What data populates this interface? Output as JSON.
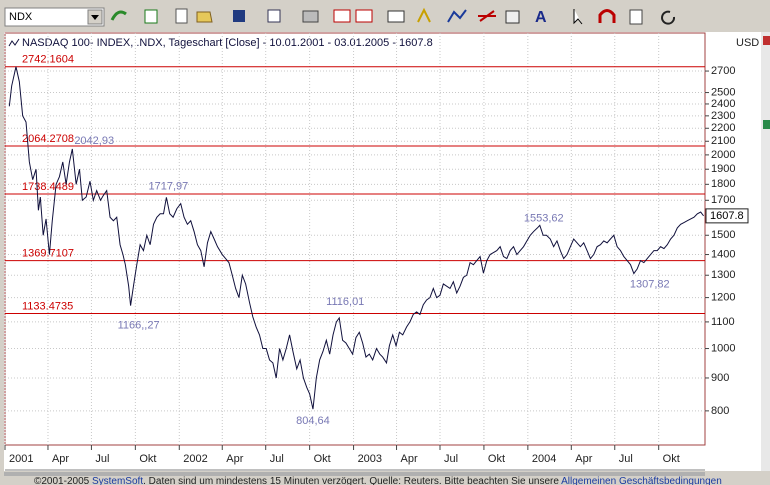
{
  "toolbar": {
    "symbol": "NDX",
    "font_icon": "A"
  },
  "chart_data": {
    "type": "line",
    "title": "NASDAQ 100- INDEX, .NDX, Tageschart [Close] - 10.01.2001 - 03.01.2005 - 1607.8",
    "y_label": "USD",
    "log_scale": true,
    "grid": true,
    "xlim": [
      "2001-01-01",
      "2005-01-06"
    ],
    "ylim": [
      708,
      3094
    ],
    "yticks": [
      800,
      900,
      1000,
      1100,
      1200,
      1300,
      1400,
      1500,
      1700,
      1800,
      1900,
      2000,
      2100,
      2200,
      2300,
      2400,
      2500,
      2700
    ],
    "xticks": [
      {
        "value": "2001-01-01",
        "label": "2001"
      },
      {
        "value": "2001-04-01",
        "label": "Apr"
      },
      {
        "value": "2001-07-01",
        "label": "Jul"
      },
      {
        "value": "2001-10-01",
        "label": "Okt"
      },
      {
        "value": "2002-01-01",
        "label": "2002"
      },
      {
        "value": "2002-04-01",
        "label": "Apr"
      },
      {
        "value": "2002-07-01",
        "label": "Jul"
      },
      {
        "value": "2002-10-01",
        "label": "Okt"
      },
      {
        "value": "2003-01-01",
        "label": "2003"
      },
      {
        "value": "2003-04-01",
        "label": "Apr"
      },
      {
        "value": "2003-07-01",
        "label": "Jul"
      },
      {
        "value": "2003-10-01",
        "label": "Okt"
      },
      {
        "value": "2004-01-01",
        "label": "2004"
      },
      {
        "value": "2004-04-01",
        "label": "Apr"
      },
      {
        "value": "2004-07-01",
        "label": "Jul"
      },
      {
        "value": "2004-10-01",
        "label": "Okt"
      }
    ],
    "levels": [
      2742.1604,
      2064.2708,
      1738.4489,
      1369.7107,
      1133.4735
    ],
    "level_color": "#cc0000",
    "annotation_color": "#7878b4",
    "annotations": [
      {
        "text": "2042,93",
        "x": "2001-05-22",
        "value": 2042.93
      },
      {
        "text": "1717,97",
        "x": "2001-12-05",
        "value": 1717.97
      },
      {
        "text": "1166,,27",
        "x": "2001-09-21",
        "value": 1166.27
      },
      {
        "text": "804,64",
        "x": "2002-10-08",
        "value": 804.64
      },
      {
        "text": "1116,01",
        "x": "2002-12-02",
        "value": 1116.01
      },
      {
        "text": "1553,62",
        "x": "2004-01-26",
        "value": 1553.62
      },
      {
        "text": "1307,82",
        "x": "2004-08-10",
        "value": 1307.82
      }
    ],
    "x": [
      "2001-01-10",
      "2001-01-15",
      "2001-01-24",
      "2001-01-31",
      "2001-02-07",
      "2001-02-14",
      "2001-02-21",
      "2001-02-28",
      "2001-03-07",
      "2001-03-12",
      "2001-03-16",
      "2001-03-22",
      "2001-03-28",
      "2001-04-04",
      "2001-04-10",
      "2001-04-18",
      "2001-04-25",
      "2001-05-02",
      "2001-05-09",
      "2001-05-16",
      "2001-05-22",
      "2001-05-30",
      "2001-06-06",
      "2001-06-12",
      "2001-06-20",
      "2001-06-28",
      "2001-07-05",
      "2001-07-12",
      "2001-07-20",
      "2001-07-26",
      "2001-08-02",
      "2001-08-09",
      "2001-08-16",
      "2001-08-23",
      "2001-08-30",
      "2001-09-05",
      "2001-09-10",
      "2001-09-17",
      "2001-09-21",
      "2001-09-27",
      "2001-10-04",
      "2001-10-11",
      "2001-10-18",
      "2001-10-25",
      "2001-11-01",
      "2001-11-08",
      "2001-11-15",
      "2001-11-22",
      "2001-11-29",
      "2001-12-05",
      "2001-12-12",
      "2001-12-19",
      "2001-12-27",
      "2002-01-04",
      "2002-01-11",
      "2002-01-18",
      "2002-01-25",
      "2002-02-01",
      "2002-02-08",
      "2002-02-15",
      "2002-02-22",
      "2002-03-01",
      "2002-03-08",
      "2002-03-15",
      "2002-03-22",
      "2002-04-01",
      "2002-04-08",
      "2002-04-15",
      "2002-04-22",
      "2002-04-29",
      "2002-05-06",
      "2002-05-13",
      "2002-05-20",
      "2002-05-28",
      "2002-06-04",
      "2002-06-11",
      "2002-06-18",
      "2002-06-25",
      "2002-07-02",
      "2002-07-09",
      "2002-07-16",
      "2002-07-23",
      "2002-07-30",
      "2002-08-06",
      "2002-08-13",
      "2002-08-20",
      "2002-08-27",
      "2002-09-04",
      "2002-09-11",
      "2002-09-18",
      "2002-09-25",
      "2002-10-01",
      "2002-10-08",
      "2002-10-15",
      "2002-10-22",
      "2002-10-29",
      "2002-11-05",
      "2002-11-12",
      "2002-11-19",
      "2002-11-26",
      "2002-12-02",
      "2002-12-09",
      "2002-12-16",
      "2002-12-23",
      "2002-12-30",
      "2003-01-06",
      "2003-01-13",
      "2003-01-20",
      "2003-01-27",
      "2003-02-03",
      "2003-02-10",
      "2003-02-18",
      "2003-02-25",
      "2003-03-03",
      "2003-03-11",
      "2003-03-17",
      "2003-03-24",
      "2003-03-31",
      "2003-04-07",
      "2003-04-14",
      "2003-04-22",
      "2003-04-29",
      "2003-05-06",
      "2003-05-13",
      "2003-05-20",
      "2003-05-27",
      "2003-06-03",
      "2003-06-10",
      "2003-06-17",
      "2003-06-24",
      "2003-07-01",
      "2003-07-08",
      "2003-07-15",
      "2003-07-22",
      "2003-07-29",
      "2003-08-05",
      "2003-08-12",
      "2003-08-19",
      "2003-08-26",
      "2003-09-02",
      "2003-09-09",
      "2003-09-16",
      "2003-09-23",
      "2003-09-30",
      "2003-10-07",
      "2003-10-14",
      "2003-10-21",
      "2003-10-28",
      "2003-11-04",
      "2003-11-11",
      "2003-11-18",
      "2003-11-25",
      "2003-12-02",
      "2003-12-09",
      "2003-12-16",
      "2003-12-23",
      "2003-12-30",
      "2004-01-06",
      "2004-01-13",
      "2004-01-21",
      "2004-01-26",
      "2004-02-02",
      "2004-02-09",
      "2004-02-17",
      "2004-02-24",
      "2004-03-02",
      "2004-03-09",
      "2004-03-16",
      "2004-03-23",
      "2004-03-30",
      "2004-04-06",
      "2004-04-13",
      "2004-04-20",
      "2004-04-27",
      "2004-05-04",
      "2004-05-11",
      "2004-05-18",
      "2004-05-25",
      "2004-06-01",
      "2004-06-08",
      "2004-06-15",
      "2004-06-22",
      "2004-06-29",
      "2004-07-06",
      "2004-07-13",
      "2004-07-20",
      "2004-07-27",
      "2004-08-03",
      "2004-08-10",
      "2004-08-17",
      "2004-08-24",
      "2004-08-31",
      "2004-09-07",
      "2004-09-14",
      "2004-09-21",
      "2004-09-28",
      "2004-10-05",
      "2004-10-12",
      "2004-10-19",
      "2004-10-26",
      "2004-11-02",
      "2004-11-09",
      "2004-11-16",
      "2004-11-23",
      "2004-11-30",
      "2004-12-07",
      "2004-12-14",
      "2004-12-21",
      "2004-12-28",
      "2005-01-03"
    ],
    "series": [
      {
        "name": "NASDAQ 100- INDEX",
        "color": "#10103c",
        "values": [
          2380,
          2560,
          2742,
          2600,
          2300,
          2250,
          1950,
          1830,
          1900,
          1640,
          1720,
          1500,
          1590,
          1400,
          1580,
          1800,
          1850,
          1950,
          1800,
          1950,
          2043,
          1800,
          1900,
          1700,
          1720,
          1820,
          1700,
          1760,
          1700,
          1730,
          1760,
          1600,
          1580,
          1600,
          1450,
          1400,
          1350,
          1250,
          1166,
          1250,
          1350,
          1450,
          1420,
          1500,
          1450,
          1560,
          1600,
          1620,
          1620,
          1718,
          1620,
          1600,
          1650,
          1680,
          1600,
          1560,
          1580,
          1520,
          1450,
          1420,
          1340,
          1460,
          1520,
          1480,
          1440,
          1400,
          1380,
          1360,
          1300,
          1240,
          1200,
          1300,
          1260,
          1180,
          1120,
          1080,
          1050,
          1000,
          1000,
          960,
          950,
          900,
          1000,
          960,
          1000,
          1050,
          990,
          930,
          960,
          900,
          870,
          850,
          805,
          900,
          960,
          990,
          1030,
          980,
          1050,
          1100,
          1116,
          1030,
          1020,
          1000,
          980,
          1040,
          1060,
          1020,
          970,
          980,
          960,
          1000,
          980,
          970,
          950,
          1010,
          1050,
          1010,
          1060,
          1050,
          1080,
          1100,
          1130,
          1140,
          1130,
          1170,
          1190,
          1200,
          1240,
          1200,
          1210,
          1260,
          1250,
          1240,
          1270,
          1220,
          1250,
          1290,
          1300,
          1360,
          1350,
          1370,
          1390,
          1310,
          1370,
          1400,
          1410,
          1420,
          1440,
          1390,
          1380,
          1420,
          1440,
          1400,
          1420,
          1440,
          1470,
          1500,
          1520,
          1540,
          1554,
          1500,
          1500,
          1480,
          1440,
          1470,
          1420,
          1380,
          1400,
          1440,
          1480,
          1460,
          1440,
          1460,
          1420,
          1380,
          1400,
          1440,
          1450,
          1470,
          1460,
          1480,
          1500,
          1440,
          1420,
          1390,
          1370,
          1350,
          1308,
          1330,
          1370,
          1360,
          1380,
          1400,
          1420,
          1420,
          1440,
          1430,
          1450,
          1480,
          1500,
          1540,
          1560,
          1570,
          1580,
          1590,
          1600,
          1620,
          1630,
          1607.8
        ]
      }
    ]
  },
  "footer": {
    "copyright": "©2001-2005 ",
    "link1": "SystemSoft",
    "text": ". Daten sind um mindestens 15 Minuten verzögert. Quelle: Reuters. Bitte beachten Sie unsere ",
    "link2": "Allgemeinen Geschäftsbedingungen"
  }
}
